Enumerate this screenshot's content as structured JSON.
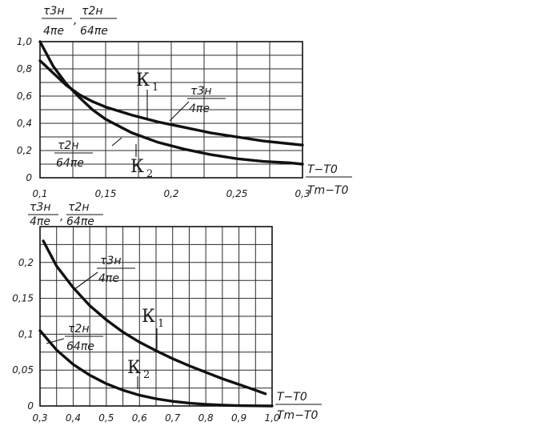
{
  "chart_data": [
    {
      "type": "line",
      "ylabel": {
        "top_left": "τ3н",
        "bottom_left": "4πe",
        "sep": ",",
        "top_right": "τ2н",
        "bottom_right": "64πe"
      },
      "xlabel": {
        "top": "T−T0",
        "bottom": "Tm−T0"
      },
      "xlim": [
        0.1,
        0.3
      ],
      "ylim": [
        0,
        1.0
      ],
      "x_ticks": [
        0.1,
        0.15,
        0.2,
        0.25,
        0.3
      ],
      "x_tick_labels": [
        "0,1",
        "0,15",
        "0,2",
        "0,25",
        "0,3"
      ],
      "y_ticks": [
        0,
        0.2,
        0.4,
        0.6,
        0.8,
        1.0
      ],
      "y_tick_labels": [
        "0",
        "0,2",
        "0,4",
        "0,6",
        "0,8",
        "1,0"
      ],
      "grid": true,
      "series": [
        {
          "name": "τ3н/4πe",
          "label_top": "τ3н",
          "label_bottom": "4πe",
          "x": [
            0.1,
            0.11,
            0.12,
            0.13,
            0.14,
            0.15,
            0.17,
            0.19,
            0.21,
            0.23,
            0.25,
            0.27,
            0.29,
            0.3
          ],
          "y": [
            0.86,
            0.77,
            0.68,
            0.61,
            0.56,
            0.52,
            0.46,
            0.41,
            0.37,
            0.33,
            0.3,
            0.27,
            0.25,
            0.24
          ]
        },
        {
          "name": "τ2н/64πe",
          "label_top": "τ2н",
          "label_bottom": "64πe",
          "x": [
            0.1,
            0.11,
            0.12,
            0.13,
            0.14,
            0.15,
            0.17,
            0.19,
            0.21,
            0.23,
            0.25,
            0.27,
            0.29,
            0.3
          ],
          "y": [
            1.0,
            0.82,
            0.69,
            0.59,
            0.5,
            0.43,
            0.33,
            0.26,
            0.21,
            0.17,
            0.14,
            0.12,
            0.11,
            0.1
          ]
        }
      ],
      "markers": [
        {
          "letter": "К",
          "subscript": "1",
          "x": 0.18,
          "y": 0.42
        },
        {
          "letter": "К",
          "subscript": "2",
          "x": 0.182,
          "y": 0.18
        }
      ]
    },
    {
      "type": "line",
      "ylabel": {
        "top_left": "τ3н",
        "bottom_left": "4πe",
        "sep": ",",
        "top_right": "τ2н",
        "bottom_right": "64πe"
      },
      "xlabel": {
        "top": "T−T0",
        "bottom": "Tm−T0"
      },
      "xlim": [
        0.3,
        1.0
      ],
      "ylim": [
        0,
        0.25
      ],
      "x_ticks": [
        0.3,
        0.4,
        0.5,
        0.6,
        0.7,
        0.8,
        0.9,
        1.0
      ],
      "x_tick_labels": [
        "0,3",
        "0,4",
        "0,5",
        "0,6",
        "0,7",
        "0,8",
        "0,9",
        "1,0"
      ],
      "y_ticks": [
        0,
        0.05,
        0.1,
        0.15,
        0.2
      ],
      "y_tick_labels": [
        "0",
        "0,05",
        "0,1",
        "0,15",
        "0,2"
      ],
      "grid": true,
      "series": [
        {
          "name": "τ3н/4πe",
          "label_top": "τ3н",
          "label_bottom": "4πe",
          "x": [
            0.31,
            0.35,
            0.4,
            0.45,
            0.5,
            0.55,
            0.6,
            0.65,
            0.7,
            0.75,
            0.8,
            0.85,
            0.9,
            0.95,
            0.98
          ],
          "y": [
            0.23,
            0.195,
            0.165,
            0.14,
            0.12,
            0.103,
            0.089,
            0.077,
            0.066,
            0.056,
            0.047,
            0.038,
            0.03,
            0.022,
            0.017
          ]
        },
        {
          "name": "τ2н/64πe",
          "label_top": "τ2н",
          "label_bottom": "64πe",
          "x": [
            0.3,
            0.35,
            0.4,
            0.45,
            0.5,
            0.55,
            0.6,
            0.65,
            0.7,
            0.75,
            0.8,
            0.85,
            0.9,
            0.95,
            1.0
          ],
          "y": [
            0.105,
            0.078,
            0.058,
            0.043,
            0.031,
            0.022,
            0.015,
            0.01,
            0.0065,
            0.004,
            0.0022,
            0.0011,
            0.0005,
            0.0002,
            0.0
          ]
        }
      ],
      "markers": [
        {
          "letter": "К",
          "subscript": "1",
          "x": 0.65,
          "y": 0.082
        },
        {
          "letter": "К",
          "subscript": "2",
          "x": 0.6,
          "y": 0.017
        }
      ]
    }
  ]
}
